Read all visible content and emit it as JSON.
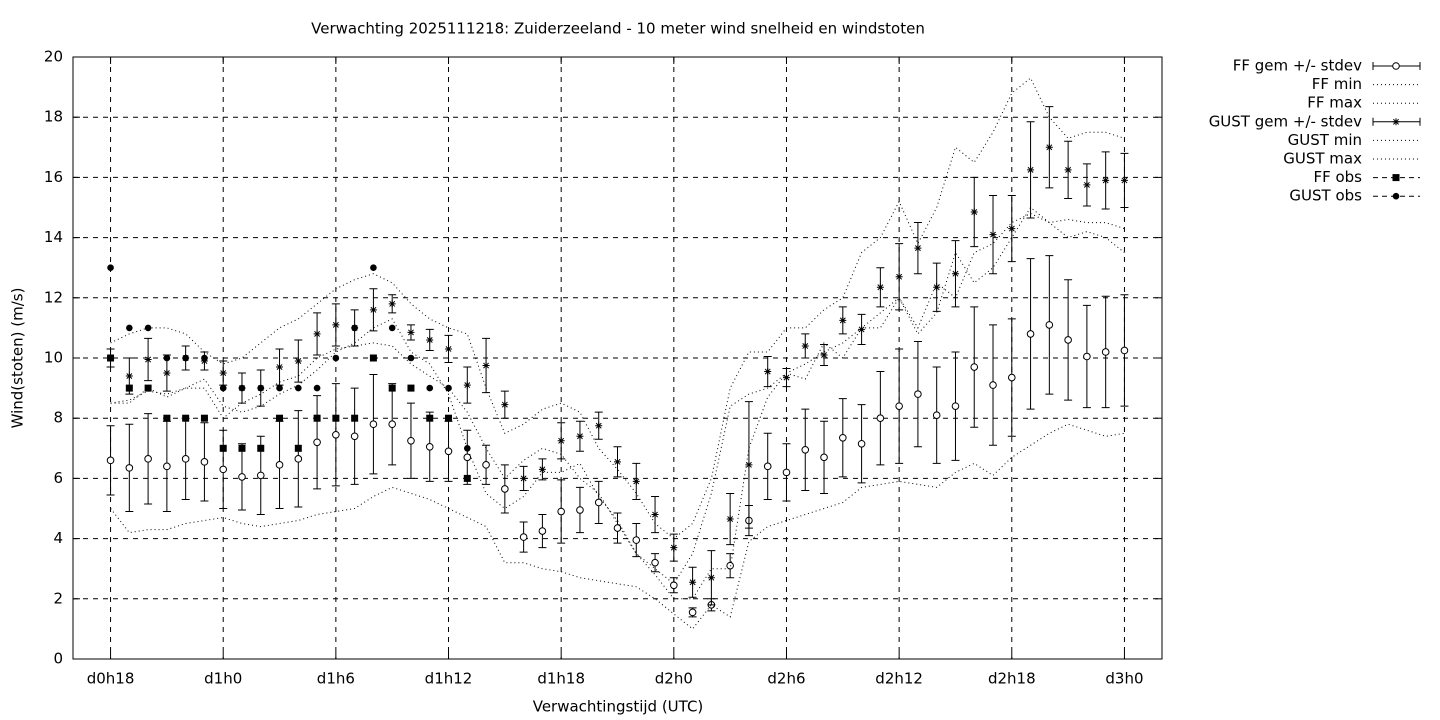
{
  "chart_data": {
    "type": "errorbar",
    "title": "Verwachting 2025111218: Zuiderzeeland - 10 meter wind snelheid en windstoten",
    "xlabel": "Verwachtingstijd (UTC)",
    "ylabel": "Wind(stoten) (m/s)",
    "xlim": [
      16,
      74
    ],
    "xticks": [
      {
        "value": 18,
        "label": "d0h18"
      },
      {
        "value": 24,
        "label": "d1h0"
      },
      {
        "value": 30,
        "label": "d1h6"
      },
      {
        "value": 36,
        "label": "d1h12"
      },
      {
        "value": 42,
        "label": "d1h18"
      },
      {
        "value": 48,
        "label": "d2h0"
      },
      {
        "value": 54,
        "label": "d2h6"
      },
      {
        "value": 60,
        "label": "d2h12"
      },
      {
        "value": 66,
        "label": "d2h18"
      },
      {
        "value": 72,
        "label": "d3h0"
      }
    ],
    "ylim": [
      0,
      20
    ],
    "yticks": [
      0,
      2,
      4,
      6,
      8,
      10,
      12,
      14,
      16,
      18,
      20
    ],
    "grid": true,
    "legend": "outside-right",
    "x": [
      18,
      19,
      20,
      21,
      22,
      23,
      24,
      25,
      26,
      27,
      28,
      29,
      30,
      31,
      32,
      33,
      34,
      35,
      36,
      37,
      38,
      39,
      40,
      41,
      42,
      43,
      44,
      45,
      46,
      47,
      48,
      49,
      50,
      51,
      52,
      53,
      54,
      55,
      56,
      57,
      58,
      59,
      60,
      61,
      62,
      63,
      64,
      65,
      66,
      67,
      68,
      69,
      70,
      71,
      72
    ],
    "series": [
      {
        "name": "FF gem +/- stdev",
        "color": "#000000",
        "marker": "circle",
        "line": "none",
        "values": [
          6.6,
          6.35,
          6.65,
          6.4,
          6.65,
          6.55,
          6.3,
          6.05,
          6.1,
          6.45,
          6.65,
          7.2,
          7.45,
          7.4,
          7.8,
          7.8,
          7.25,
          7.05,
          6.9,
          6.7,
          6.45,
          5.65,
          4.05,
          4.25,
          4.9,
          4.95,
          5.2,
          4.35,
          3.95,
          3.2,
          2.45,
          1.55,
          1.8,
          3.1,
          4.6,
          6.4,
          6.2,
          6.95,
          6.7,
          7.35,
          7.15,
          8.0,
          8.4,
          8.8,
          8.1,
          8.4,
          9.7,
          9.1,
          9.35,
          10.8,
          11.1,
          10.6,
          10.05,
          10.2,
          10.25
        ],
        "errors": [
          1.15,
          1.45,
          1.5,
          1.5,
          1.35,
          1.3,
          1.3,
          1.1,
          1.3,
          1.45,
          1.6,
          1.55,
          1.7,
          1.6,
          1.65,
          1.35,
          1.25,
          1.15,
          1.0,
          0.9,
          0.65,
          0.8,
          0.5,
          0.55,
          1.05,
          0.75,
          0.7,
          0.5,
          0.55,
          0.3,
          0.25,
          0.15,
          0.2,
          0.4,
          0.5,
          1.1,
          0.95,
          1.35,
          1.2,
          1.3,
          1.3,
          1.55,
          1.9,
          1.75,
          1.6,
          1.8,
          2.0,
          2.0,
          1.95,
          2.5,
          2.3,
          2.0,
          1.7,
          1.85,
          1.85
        ]
      },
      {
        "name": "FF min",
        "color": "#000000",
        "marker": "none",
        "line": "dotted",
        "values": [
          5.0,
          4.2,
          4.3,
          4.3,
          4.5,
          4.6,
          4.7,
          4.5,
          4.4,
          4.5,
          4.6,
          4.8,
          4.9,
          5.0,
          5.4,
          5.7,
          5.5,
          5.3,
          5.0,
          4.7,
          4.4,
          3.2,
          3.2,
          3.0,
          2.9,
          2.7,
          2.6,
          2.5,
          2.4,
          2.0,
          1.5,
          1.0,
          1.8,
          1.4,
          3.9,
          4.4,
          4.6,
          4.8,
          5.0,
          5.2,
          5.7,
          5.8,
          5.9,
          5.8,
          5.7,
          6.2,
          6.5,
          6.1,
          6.7,
          7.1,
          7.5,
          7.8,
          7.6,
          7.4,
          7.5
        ]
      },
      {
        "name": "FF max",
        "color": "#000000",
        "marker": "none",
        "line": "dotted",
        "values": [
          8.5,
          8.6,
          8.9,
          8.8,
          9.0,
          9.0,
          8.0,
          8.5,
          8.8,
          9.2,
          9.4,
          10.0,
          10.3,
          10.4,
          10.5,
          10.4,
          9.8,
          9.4,
          9.0,
          8.2,
          7.0,
          6.0,
          6.6,
          7.0,
          6.8,
          6.0,
          5.5,
          4.5,
          3.5,
          3.0,
          2.5,
          3.5,
          5.5,
          8.4,
          8.8,
          9.0,
          9.5,
          9.8,
          10.2,
          10.5,
          11.0,
          11.5,
          12.0,
          11.0,
          12.5,
          12.0,
          13.5,
          13.8,
          14.5,
          14.8,
          14.5,
          14.6,
          14.5,
          14.5,
          14.3
        ]
      },
      {
        "name": "GUST gem +/- stdev",
        "color": "#000000",
        "marker": "asterisk",
        "line": "none",
        "values": [
          10.0,
          9.4,
          9.95,
          9.5,
          10.0,
          9.9,
          9.5,
          9.0,
          9.0,
          9.7,
          9.9,
          10.8,
          11.1,
          11.0,
          11.6,
          11.8,
          10.85,
          10.6,
          10.3,
          9.1,
          9.75,
          8.45,
          6.0,
          6.3,
          7.25,
          7.4,
          7.75,
          6.55,
          5.9,
          4.8,
          3.7,
          2.55,
          2.7,
          4.65,
          6.45,
          9.55,
          9.35,
          10.4,
          10.1,
          11.25,
          10.95,
          12.35,
          12.7,
          13.65,
          12.35,
          12.8,
          14.85,
          14.1,
          14.3,
          16.25,
          17.0,
          16.25,
          15.75,
          15.9,
          15.9
        ],
        "errors": [
          0.3,
          0.6,
          0.7,
          0.6,
          0.4,
          0.3,
          0.4,
          0.5,
          0.6,
          0.6,
          0.7,
          0.7,
          0.7,
          0.6,
          0.7,
          0.3,
          0.25,
          0.35,
          0.45,
          0.6,
          0.9,
          0.45,
          0.4,
          0.35,
          0.6,
          0.5,
          0.45,
          0.5,
          0.6,
          0.6,
          0.45,
          0.5,
          0.9,
          0.85,
          2.1,
          0.5,
          0.3,
          0.4,
          0.35,
          0.45,
          0.5,
          0.65,
          1.1,
          0.85,
          0.8,
          1.1,
          1.15,
          1.3,
          1.1,
          1.6,
          1.35,
          0.95,
          0.7,
          0.95,
          0.9
        ]
      },
      {
        "name": "GUST min",
        "color": "#000000",
        "marker": "none",
        "line": "dotted",
        "values": [
          8.5,
          8.5,
          9.0,
          8.7,
          9.0,
          9.3,
          8.4,
          8.2,
          8.4,
          8.8,
          9.1,
          9.6,
          10.2,
          10.5,
          11.0,
          11.3,
          10.2,
          9.8,
          8.8,
          7.0,
          5.5,
          5.0,
          5.4,
          6.2,
          6.2,
          6.5,
          5.4,
          4.6,
          3.5,
          2.8,
          2.0,
          2.0,
          3.0,
          3.0,
          7.0,
          8.7,
          9.5,
          9.3,
          10.5,
          10.0,
          11.0,
          11.0,
          12.0,
          10.8,
          11.5,
          13.5,
          12.5,
          13.0,
          14.0,
          15.0,
          14.5,
          14.0,
          14.2,
          14.0,
          13.5
        ]
      },
      {
        "name": "GUST max",
        "color": "#000000",
        "marker": "none",
        "line": "dotted",
        "values": [
          10.5,
          10.8,
          11.0,
          11.0,
          10.8,
          10.2,
          9.8,
          10.0,
          10.5,
          11.0,
          11.3,
          11.8,
          12.3,
          12.6,
          12.8,
          12.5,
          11.8,
          11.3,
          11.0,
          10.8,
          9.0,
          7.5,
          7.8,
          8.3,
          8.5,
          8.2,
          7.0,
          6.3,
          5.5,
          4.5,
          4.0,
          4.5,
          6.0,
          9.0,
          10.2,
          10.2,
          11.0,
          11.0,
          11.6,
          12.0,
          13.5,
          14.0,
          15.2,
          13.8,
          15.0,
          17.0,
          16.5,
          17.5,
          18.8,
          19.3,
          18.0,
          17.3,
          17.5,
          17.5,
          17.3
        ]
      },
      {
        "name": "FF obs",
        "color": "#000000",
        "marker": "square",
        "line": "none",
        "x": [
          18,
          19,
          20,
          21,
          22,
          23,
          24,
          25,
          26,
          27,
          28,
          29,
          30,
          31,
          32,
          33,
          34,
          35,
          36,
          37
        ],
        "values": [
          10,
          9,
          9,
          8,
          8,
          8,
          7,
          7,
          7,
          8,
          7,
          8,
          8,
          8,
          10,
          9,
          9,
          8,
          8,
          6
        ]
      },
      {
        "name": "GUST obs",
        "color": "#000000",
        "marker": "dot",
        "line": "none",
        "x": [
          18,
          19,
          20,
          21,
          22,
          23,
          24,
          25,
          26,
          27,
          28,
          29,
          30,
          31,
          32,
          33,
          34,
          35,
          36,
          37
        ],
        "values": [
          13,
          11,
          11,
          10,
          10,
          10,
          9,
          9,
          9,
          9,
          9,
          9,
          10,
          11,
          13,
          11,
          10,
          9,
          9,
          7
        ]
      }
    ]
  }
}
